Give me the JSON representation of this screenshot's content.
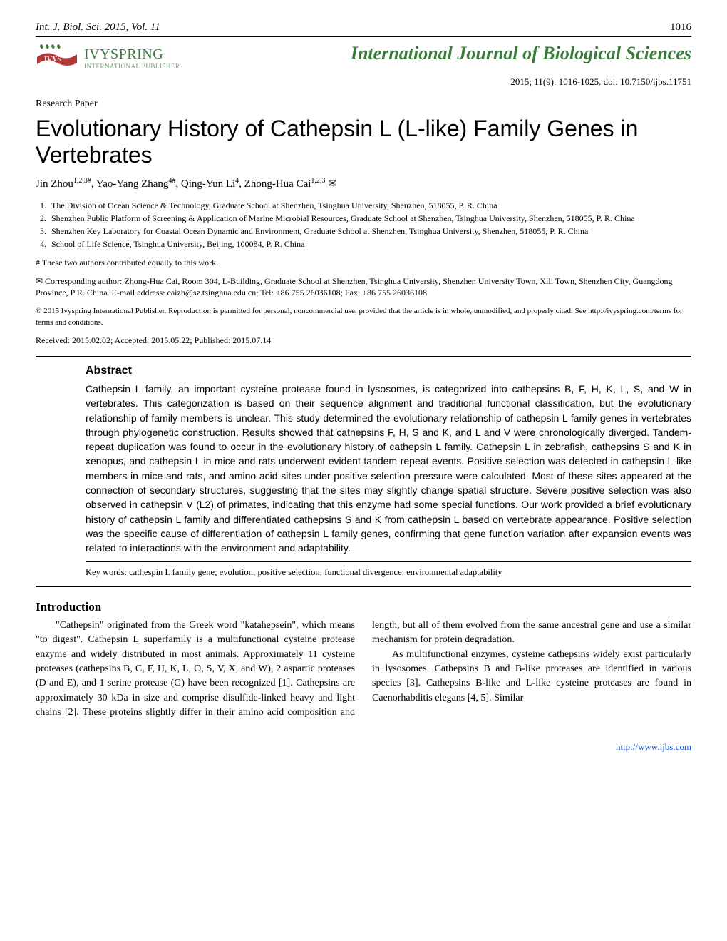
{
  "header": {
    "journal_short": "Int. J. Biol. Sci. 2015, Vol. 11",
    "page_number": "1016"
  },
  "publisher": {
    "name": "IVYSPRING",
    "subtitle": "INTERNATIONAL PUBLISHER",
    "logo_colors": {
      "leaves": "#3a7a3a",
      "ribbon": "#b33a3a"
    }
  },
  "journal_title": "International Journal of Biological Sciences",
  "citation": "2015; 11(9): 1016-1025. doi: 10.7150/ijbs.11751",
  "article_type": "Research Paper",
  "title": "Evolutionary History of Cathepsin L (L-like) Family Genes in Vertebrates",
  "authors_html": "Jin Zhou<sup>1,2,3#</sup>, Yao-Yang Zhang<sup>4#</sup>, Qing-Yun Li<sup>4</sup>, Zhong-Hua Cai<sup>1,2,3</sup> ✉",
  "affiliations": [
    "The Division of Ocean Science & Technology, Graduate School at Shenzhen, Tsinghua University, Shenzhen, 518055, P. R. China",
    "Shenzhen Public Platform of Screening & Application of Marine Microbial Resources, Graduate School at Shenzhen, Tsinghua University, Shenzhen, 518055, P. R. China",
    "Shenzhen Key Laboratory for Coastal Ocean Dynamic and Environment, Graduate School at Shenzhen, Tsinghua University, Shenzhen, 518055, P. R. China",
    "School of Life Science, Tsinghua University, Beijing, 100084, P. R. China"
  ],
  "equal_contrib": "# These two authors contributed equally to this work.",
  "corresponding": "✉ Corresponding author: Zhong-Hua Cai, Room 304, L-Building, Graduate School at Shenzhen, Tsinghua University, Shenzhen University Town, Xili Town, Shenzhen City, Guangdong Province, P R. China. E-mail address: caizh@sz.tsinghua.edu.cn; Tel: +86 755 26036108; Fax: +86 755 26036108",
  "copyright": "© 2015 Ivyspring International Publisher. Reproduction is permitted for personal, noncommercial use, provided that the article is in whole, unmodified, and properly cited. See http://ivyspring.com/terms for terms and conditions.",
  "dates": "Received: 2015.02.02; Accepted: 2015.05.22; Published: 2015.07.14",
  "abstract": {
    "heading": "Abstract",
    "text": "Cathepsin L family, an important cysteine protease found in lysosomes, is categorized into cathepsins B, F, H, K, L, S, and W in vertebrates. This categorization is based on their sequence alignment and traditional functional classification, but the evolutionary relationship of family members is unclear. This study determined the evolutionary relationship of cathepsin L family genes in vertebrates through phylogenetic construction. Results showed that cathepsins F, H, S and K, and L and V were chronologically diverged. Tandem-repeat duplication was found to occur in the evolutionary history of cathepsin L family. Cathepsin L in zebrafish, cathepsins S and K in xenopus, and cathepsin L in mice and rats underwent evident tandem-repeat events. Positive selection was detected in cathepsin L-like members in mice and rats, and amino acid sites under positive selection pressure were calculated. Most of these sites appeared at the connection of secondary structures, suggesting that the sites may slightly change spatial structure. Severe positive selection was also observed in cathepsin V (L2) of primates, indicating that this enzyme had some special functions. Our work provided a brief evolutionary history of cathepsin L family and differentiated cathepsins S and K from cathepsin L based on vertebrate appearance. Positive selection was the specific cause of differentiation of cathepsin L family genes, confirming that gene function variation after expansion events was related to interactions with the environment and adaptability.",
    "keywords": "Key words: cathespin L family gene; evolution; positive selection; functional divergence; environmental adaptability"
  },
  "introduction": {
    "heading": "Introduction",
    "paragraphs": [
      "\"Cathepsin\" originated from the Greek word \"katahepsein\", which means \"to digest\". Cathepsin L superfamily is a multifunctional cysteine protease enzyme and widely distributed in most animals. Approximately 11 cysteine proteases (cathepsins B, C, F, H, K, L, O, S, V, X, and W), 2 aspartic proteases (D and E), and 1 serine protease (G) have been recognized [1]. Cathepsins are approximately 30 kDa in size and comprise disulfide-linked heavy and light chains [2]. These proteins slightly differ in their amino acid composition and length, but all of them evolved from the same ancestral gene and use a similar mechanism for protein degradation.",
      "As multifunctional enzymes, cysteine cathepsins widely exist particularly in lysosomes. Cathepsins B and B-like proteases are identified in various species [3]. Cathepsins B-like and L-like cysteine proteases are found in Caenorhabditis elegans [4, 5]. Similar"
    ]
  },
  "footer_link": "http://www.ijbs.com",
  "colors": {
    "text": "#000000",
    "green": "#3a7a3a",
    "link": "#1155cc",
    "background": "#ffffff"
  },
  "typography": {
    "title_fontsize": 32,
    "body_fontsize": 14,
    "abstract_fontsize": 14,
    "affiliation_fontsize": 12
  }
}
